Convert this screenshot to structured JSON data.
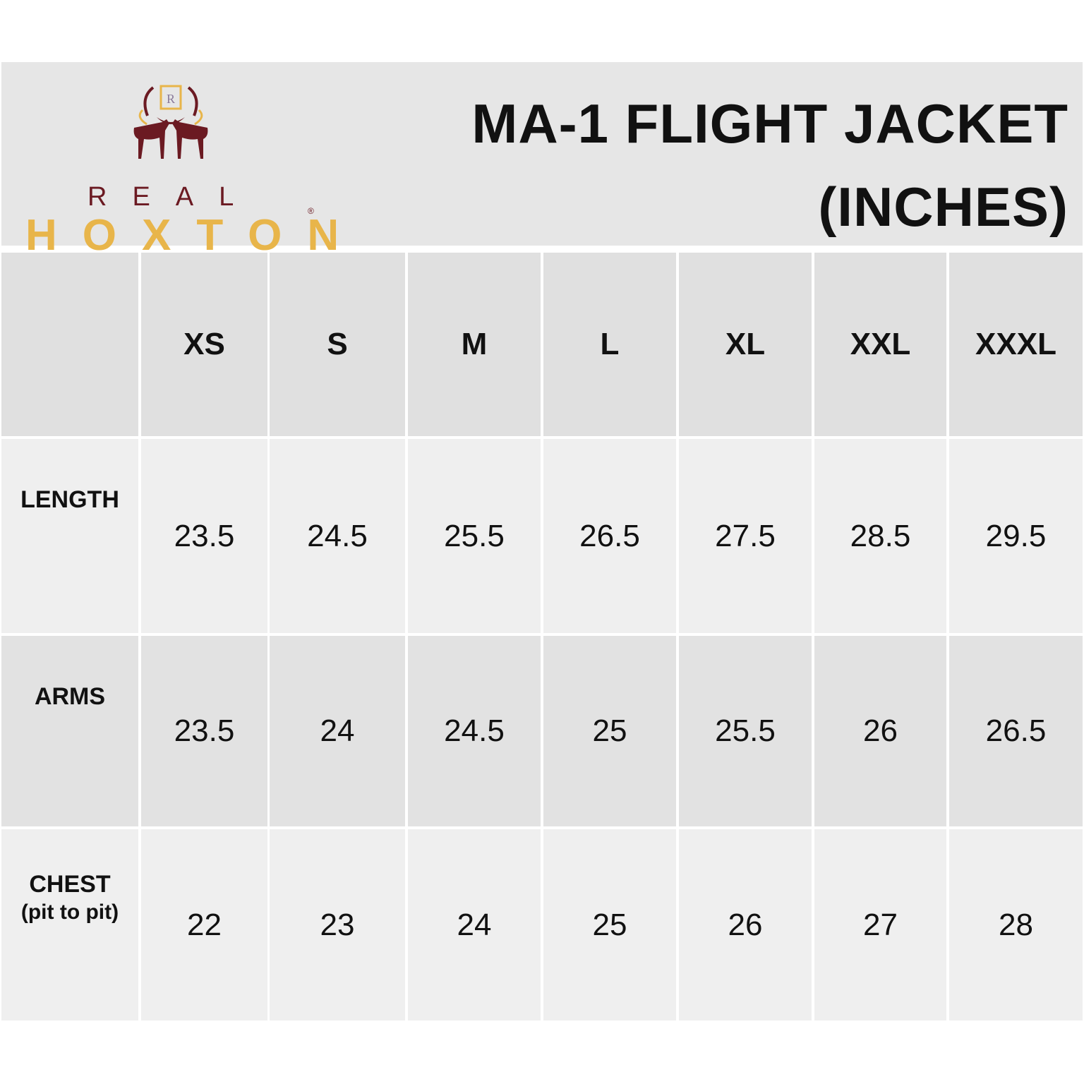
{
  "brand": {
    "line1": "REAL",
    "line2": "HOXTON",
    "monogram": "HR",
    "colors": {
      "maroon": "#6b1a22",
      "gold": "#e8b54a"
    }
  },
  "title": {
    "line1": "MA-1 FLIGHT JACKET",
    "line2": "(INCHES)"
  },
  "table": {
    "sizes": [
      "XS",
      "S",
      "M",
      "L",
      "XL",
      "XXL",
      "XXXL"
    ],
    "rows": [
      {
        "label": "LENGTH",
        "sublabel": "",
        "values": [
          "23.5",
          "24.5",
          "25.5",
          "26.5",
          "27.5",
          "28.5",
          "29.5"
        ]
      },
      {
        "label": "ARMS",
        "sublabel": "",
        "values": [
          "23.5",
          "24",
          "24.5",
          "25",
          "25.5",
          "26",
          "26.5"
        ]
      },
      {
        "label": "CHEST",
        "sublabel": "(pit to pit)",
        "values": [
          "22",
          "23",
          "24",
          "25",
          "26",
          "27",
          "28"
        ]
      }
    ]
  }
}
